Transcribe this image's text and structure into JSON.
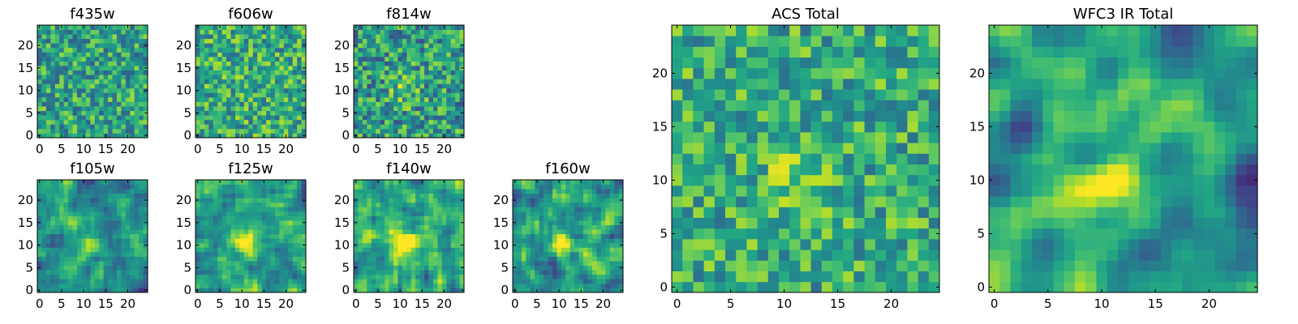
{
  "figure": {
    "colormap": "viridis",
    "grid": false
  },
  "chart_data": [
    {
      "type": "heatmap",
      "title": "f435w",
      "xticks": [
        "0",
        "5",
        "10",
        "15",
        "20"
      ],
      "yticks": [
        "0",
        "5",
        "10",
        "15",
        "20"
      ],
      "xlim": [
        -0.5,
        24.5
      ],
      "ylim": [
        -0.5,
        24.5
      ],
      "cells": 25,
      "seed": 11,
      "smooth": 0,
      "mean": 0.58,
      "spread": 0.55,
      "blob": 0.0
    },
    {
      "type": "heatmap",
      "title": "f606w",
      "xticks": [
        "0",
        "5",
        "10",
        "15",
        "20"
      ],
      "yticks": [
        "0",
        "5",
        "10",
        "15",
        "20"
      ],
      "xlim": [
        -0.5,
        24.5
      ],
      "ylim": [
        -0.5,
        24.5
      ],
      "cells": 25,
      "seed": 23,
      "smooth": 0,
      "mean": 0.62,
      "spread": 0.55,
      "blob": 0.0
    },
    {
      "type": "heatmap",
      "title": "f814w",
      "xticks": [
        "0",
        "5",
        "10",
        "15",
        "20"
      ],
      "yticks": [
        "0",
        "5",
        "10",
        "15",
        "20"
      ],
      "xlim": [
        -0.5,
        24.5
      ],
      "ylim": [
        -0.5,
        24.5
      ],
      "cells": 25,
      "seed": 37,
      "smooth": 0,
      "mean": 0.55,
      "spread": 0.6,
      "blob": 0.25
    },
    {
      "type": "heatmap",
      "title": "f105w",
      "xticks": [
        "0",
        "5",
        "10",
        "15",
        "20"
      ],
      "yticks": [
        "0",
        "5",
        "10",
        "15",
        "20"
      ],
      "xlim": [
        -0.5,
        24.5
      ],
      "ylim": [
        -0.5,
        24.5
      ],
      "cells": 25,
      "seed": 41,
      "smooth": 1,
      "mean": 0.5,
      "spread": 0.7,
      "blob": 0.35
    },
    {
      "type": "heatmap",
      "title": "f125w",
      "xticks": [
        "0",
        "5",
        "10",
        "15",
        "20"
      ],
      "yticks": [
        "0",
        "5",
        "10",
        "15",
        "20"
      ],
      "xlim": [
        -0.5,
        24.5
      ],
      "ylim": [
        -0.5,
        24.5
      ],
      "cells": 25,
      "seed": 53,
      "smooth": 1,
      "mean": 0.56,
      "spread": 0.7,
      "blob": 0.4
    },
    {
      "type": "heatmap",
      "title": "f140w",
      "xticks": [
        "0",
        "5",
        "10",
        "15",
        "20"
      ],
      "yticks": [
        "0",
        "5",
        "10",
        "15",
        "20"
      ],
      "xlim": [
        -0.5,
        24.5
      ],
      "ylim": [
        -0.5,
        24.5
      ],
      "cells": 25,
      "seed": 67,
      "smooth": 1,
      "mean": 0.58,
      "spread": 0.7,
      "blob": 0.4
    },
    {
      "type": "heatmap",
      "title": "f160w",
      "xticks": [
        "0",
        "5",
        "10",
        "15",
        "20"
      ],
      "yticks": [
        "0",
        "5",
        "10",
        "15",
        "20"
      ],
      "xlim": [
        -0.5,
        24.5
      ],
      "ylim": [
        -0.5,
        24.5
      ],
      "cells": 25,
      "seed": 79,
      "smooth": 1,
      "mean": 0.55,
      "spread": 0.7,
      "blob": 0.45
    },
    {
      "type": "heatmap",
      "title": "ACS Total",
      "xticks": [
        "0",
        "5",
        "10",
        "15",
        "20"
      ],
      "yticks": [
        "0",
        "5",
        "10",
        "15",
        "20"
      ],
      "xlim": [
        -0.5,
        24.5
      ],
      "ylim": [
        -0.5,
        24.5
      ],
      "cells": 25,
      "seed": 97,
      "smooth": 0,
      "mean": 0.62,
      "spread": 0.5,
      "blob": 0.2
    },
    {
      "type": "heatmap",
      "title": "WFC3 IR Total",
      "xticks": [
        "0",
        "5",
        "10",
        "15",
        "20"
      ],
      "yticks": [
        "0",
        "5",
        "10",
        "15",
        "20"
      ],
      "xlim": [
        -0.5,
        24.5
      ],
      "ylim": [
        -0.5,
        24.5
      ],
      "cells": 25,
      "seed": 113,
      "smooth": 2,
      "mean": 0.5,
      "spread": 0.75,
      "blob": 0.55
    }
  ]
}
